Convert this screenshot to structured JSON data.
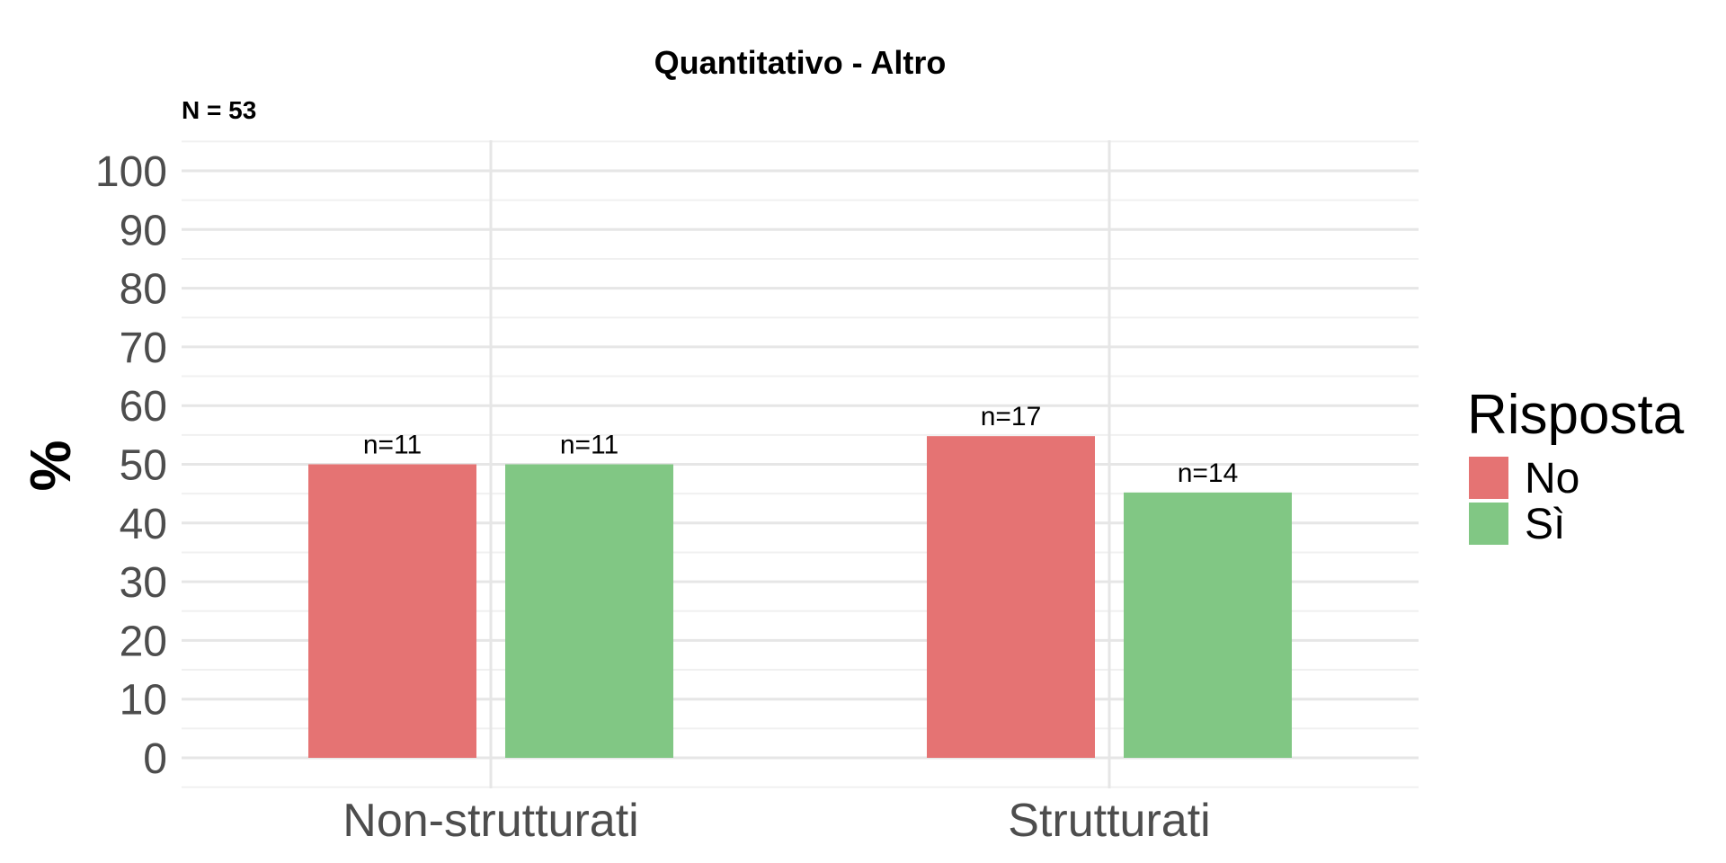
{
  "chart_data": {
    "type": "bar",
    "title": "Quantitativo - Altro",
    "subtitle": "N = 53",
    "xlabel": "",
    "ylabel": "%",
    "ylim": [
      0,
      110
    ],
    "yticks": [
      0,
      10,
      20,
      30,
      40,
      50,
      60,
      70,
      80,
      90,
      100
    ],
    "categories": [
      "Non-strutturati",
      "Strutturati"
    ],
    "series": [
      {
        "name": "No",
        "color": "#e57373",
        "values": [
          50,
          54.8
        ],
        "labels": [
          "n=11",
          "n=17"
        ]
      },
      {
        "name": "Sì",
        "color": "#81c784",
        "values": [
          50,
          45.2
        ],
        "labels": [
          "n=11",
          "n=14"
        ]
      }
    ],
    "legend": {
      "title": "Risposta",
      "position": "right"
    },
    "grid": true
  }
}
